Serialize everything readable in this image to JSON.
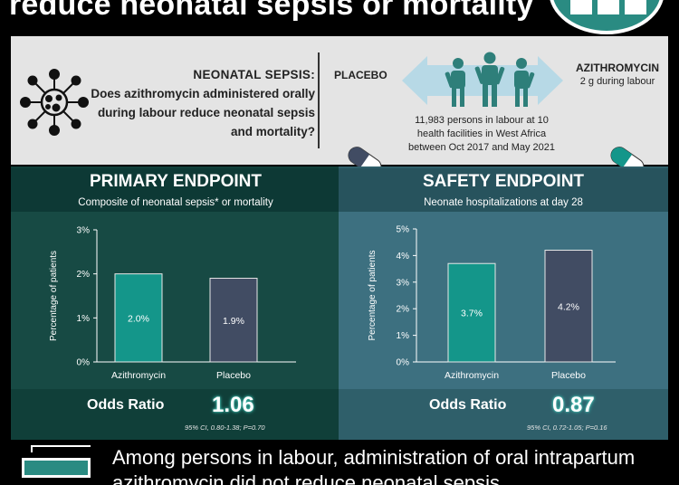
{
  "header": {
    "title": "reduce neonatal sepsis or mortality"
  },
  "question": {
    "heading": "NEONATAL SEPSIS:",
    "text": "Does azithromycin administered orally during labour reduce neonatal sepsis and mortality?"
  },
  "design": {
    "placebo_label": "PLACEBO",
    "azithromycin_label": "AZITHROMYCIN",
    "azithromycin_dose": "2 g during labour",
    "study_info": "11,983 persons in labour at 10 health facilities in West Africa between Oct 2017 and May 2021"
  },
  "primary": {
    "title": "PRIMARY ENDPOINT",
    "subtitle": "Composite of neonatal sepsis* or mortality",
    "odds_label": "Odds Ratio",
    "odds_value": "1.06",
    "ci": "95% CI, 0.80-1.38; P=0.70"
  },
  "safety": {
    "title": "SAFETY ENDPOINT",
    "subtitle": "Neonate hospitalizations at day 28",
    "odds_label": "Odds Ratio",
    "odds_value": "0.87",
    "ci": "95% CI, 0.72-1.05; P=0.16"
  },
  "conclusion": {
    "text": "Among persons in labour, administration of oral intrapartum azithromycin did not reduce neonatal sepsis"
  },
  "colors": {
    "azithromycin": "#14968a",
    "placebo": "#414c63",
    "accent": "#2a8b82"
  },
  "chart_data": [
    {
      "type": "bar",
      "categories": [
        "Azithromycin",
        "Placebo"
      ],
      "values": [
        2.0,
        1.9
      ],
      "value_labels": [
        "2.0%",
        "1.9%"
      ],
      "ylabel": "Percentage of patients",
      "yticks": [
        "0%",
        "1%",
        "2%",
        "3%"
      ],
      "ylim": [
        0,
        3
      ],
      "grid": false
    },
    {
      "type": "bar",
      "categories": [
        "Azithromycin",
        "Placebo"
      ],
      "values": [
        3.7,
        4.2
      ],
      "value_labels": [
        "3.7%",
        "4.2%"
      ],
      "ylabel": "Percentage of patients",
      "yticks": [
        "0%",
        "1%",
        "2%",
        "3%",
        "4%",
        "5%"
      ],
      "ylim": [
        0,
        5
      ],
      "grid": false
    }
  ]
}
